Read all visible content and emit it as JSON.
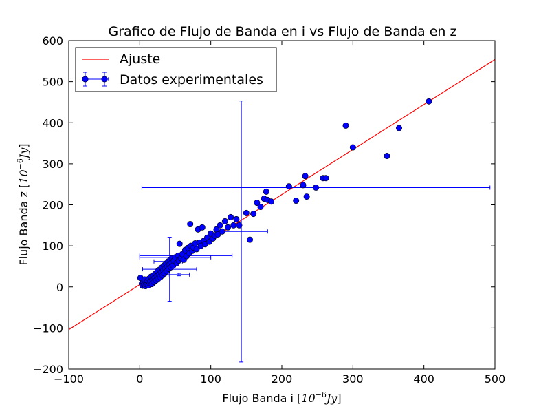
{
  "chart_data": {
    "type": "scatter",
    "title": "Grafico de Flujo de Banda en i vs Flujo de Banda en z",
    "xlabel": "Flujo Banda i",
    "xlabel_unit_base": "10",
    "xlabel_unit_exp": "−6",
    "xlabel_unit_suffix": "Jy",
    "ylabel": "Flujo Banda z",
    "ylabel_unit_base": "10",
    "ylabel_unit_exp": "−6",
    "ylabel_unit_suffix": "Jy",
    "xlim": [
      -100,
      500
    ],
    "ylim": [
      -200,
      600
    ],
    "xticks": [
      -100,
      0,
      100,
      200,
      300,
      400,
      500
    ],
    "xtick_labels": [
      "−100",
      "0",
      "100",
      "200",
      "300",
      "400",
      "500"
    ],
    "yticks": [
      -200,
      -100,
      0,
      100,
      200,
      300,
      400,
      500,
      600
    ],
    "ytick_labels": [
      "−200",
      "−100",
      "0",
      "100",
      "200",
      "300",
      "400",
      "500",
      "600"
    ],
    "grid": false,
    "legend_position": "top-left",
    "colors": {
      "fit": "#ff0000",
      "points": "#0000ff",
      "errorbars": "#0000ff"
    },
    "fit_line": {
      "name": "Ajuste",
      "x": [
        -100,
        500
      ],
      "y": [
        -104,
        554
      ]
    },
    "series": [
      {
        "name": "Datos experimentales",
        "points": [
          {
            "x": 1,
            "y": 22
          },
          {
            "x": 3,
            "y": 8
          },
          {
            "x": 4,
            "y": 3
          },
          {
            "x": 5,
            "y": 12
          },
          {
            "x": 6,
            "y": 5
          },
          {
            "x": 7,
            "y": 18
          },
          {
            "x": 8,
            "y": 2
          },
          {
            "x": 9,
            "y": 10
          },
          {
            "x": 10,
            "y": 6
          },
          {
            "x": 11,
            "y": 15
          },
          {
            "x": 12,
            "y": 4
          },
          {
            "x": 13,
            "y": 20
          },
          {
            "x": 14,
            "y": 9
          },
          {
            "x": 15,
            "y": 13
          },
          {
            "x": 16,
            "y": 25
          },
          {
            "x": 17,
            "y": 7
          },
          {
            "x": 18,
            "y": 17
          },
          {
            "x": 19,
            "y": 28
          },
          {
            "x": 20,
            "y": 12
          },
          {
            "x": 21,
            "y": 22
          },
          {
            "x": 22,
            "y": 32
          },
          {
            "x": 23,
            "y": 16
          },
          {
            "x": 24,
            "y": 26
          },
          {
            "x": 25,
            "y": 38
          },
          {
            "x": 26,
            "y": 20
          },
          {
            "x": 27,
            "y": 30
          },
          {
            "x": 28,
            "y": 42
          },
          {
            "x": 29,
            "y": 24
          },
          {
            "x": 30,
            "y": 35
          },
          {
            "x": 31,
            "y": 47
          },
          {
            "x": 32,
            "y": 28
          },
          {
            "x": 33,
            "y": 40
          },
          {
            "x": 34,
            "y": 52
          },
          {
            "x": 35,
            "y": 33
          },
          {
            "x": 36,
            "y": 45
          },
          {
            "x": 37,
            "y": 57
          },
          {
            "x": 38,
            "y": 38
          },
          {
            "x": 39,
            "y": 50
          },
          {
            "x": 40,
            "y": 62
          },
          {
            "x": 41,
            "y": 44
          },
          {
            "x": 42,
            "y": 55
          },
          {
            "x": 43,
            "y": 66
          },
          {
            "x": 44,
            "y": 48
          },
          {
            "x": 45,
            "y": 60
          },
          {
            "x": 46,
            "y": 70
          },
          {
            "x": 47,
            "y": 52
          },
          {
            "x": 48,
            "y": 64
          },
          {
            "x": 50,
            "y": 72
          },
          {
            "x": 52,
            "y": 58
          },
          {
            "x": 54,
            "y": 76
          },
          {
            "x": 55,
            "y": 64
          },
          {
            "x": 56,
            "y": 105
          },
          {
            "x": 58,
            "y": 70
          },
          {
            "x": 60,
            "y": 80
          },
          {
            "x": 62,
            "y": 66
          },
          {
            "x": 64,
            "y": 90
          },
          {
            "x": 66,
            "y": 75
          },
          {
            "x": 68,
            "y": 95
          },
          {
            "x": 70,
            "y": 82
          },
          {
            "x": 71,
            "y": 153
          },
          {
            "x": 72,
            "y": 100
          },
          {
            "x": 74,
            "y": 88
          },
          {
            "x": 76,
            "y": 96
          },
          {
            "x": 78,
            "y": 106
          },
          {
            "x": 80,
            "y": 92
          },
          {
            "x": 82,
            "y": 140
          },
          {
            "x": 84,
            "y": 108
          },
          {
            "x": 86,
            "y": 100
          },
          {
            "x": 88,
            "y": 145
          },
          {
            "x": 90,
            "y": 112
          },
          {
            "x": 92,
            "y": 104
          },
          {
            "x": 95,
            "y": 120
          },
          {
            "x": 98,
            "y": 110
          },
          {
            "x": 100,
            "y": 130
          },
          {
            "x": 103,
            "y": 118
          },
          {
            "x": 106,
            "y": 125
          },
          {
            "x": 108,
            "y": 140
          },
          {
            "x": 110,
            "y": 128
          },
          {
            "x": 113,
            "y": 150
          },
          {
            "x": 116,
            "y": 135
          },
          {
            "x": 120,
            "y": 160
          },
          {
            "x": 124,
            "y": 145
          },
          {
            "x": 128,
            "y": 170
          },
          {
            "x": 132,
            "y": 150
          },
          {
            "x": 136,
            "y": 165
          },
          {
            "x": 140,
            "y": 150
          },
          {
            "x": 150,
            "y": 180
          },
          {
            "x": 155,
            "y": 115
          },
          {
            "x": 160,
            "y": 178
          },
          {
            "x": 165,
            "y": 205
          },
          {
            "x": 170,
            "y": 195
          },
          {
            "x": 175,
            "y": 215
          },
          {
            "x": 178,
            "y": 232
          },
          {
            "x": 180,
            "y": 212
          },
          {
            "x": 185,
            "y": 208
          },
          {
            "x": 210,
            "y": 245
          },
          {
            "x": 220,
            "y": 210
          },
          {
            "x": 230,
            "y": 248
          },
          {
            "x": 233,
            "y": 270
          },
          {
            "x": 235,
            "y": 220
          },
          {
            "x": 248,
            "y": 242
          },
          {
            "x": 258,
            "y": 265
          },
          {
            "x": 262,
            "y": 265
          },
          {
            "x": 290,
            "y": 393
          },
          {
            "x": 300,
            "y": 340
          },
          {
            "x": 348,
            "y": 319
          },
          {
            "x": 365,
            "y": 387
          },
          {
            "x": 407,
            "y": 452
          }
        ],
        "error_points": [
          {
            "x": 143,
            "y": 135,
            "xerr": 37,
            "yerr": 318
          },
          {
            "x": 248,
            "y": 242,
            "xerr": 245,
            "yerr": 3
          },
          {
            "x": 42,
            "y": 43,
            "xerr": 38,
            "yerr": 78
          },
          {
            "x": 65,
            "y": 76,
            "xerr": 65,
            "yerr": 4
          },
          {
            "x": 50,
            "y": 72,
            "xerr": 50,
            "yerr": 4
          },
          {
            "x": 55,
            "y": 30,
            "xerr": 15,
            "yerr": 3
          },
          {
            "x": 40,
            "y": 62,
            "xerr": 20,
            "yerr": 4
          }
        ]
      }
    ]
  }
}
